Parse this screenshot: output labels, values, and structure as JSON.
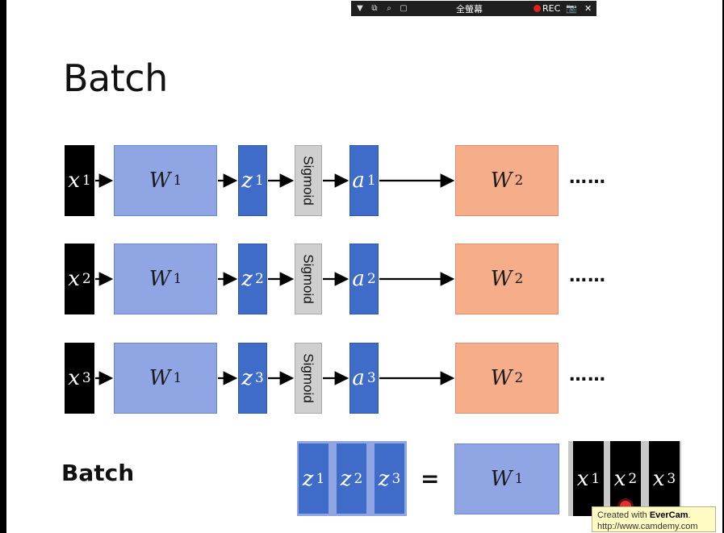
{
  "toolbar": {
    "title": "全螢幕",
    "rec_label": "REC",
    "icons": [
      "dropdown-icon",
      "restore-icon",
      "zoom-icon",
      "crop-icon",
      "camera-icon",
      "close-icon"
    ],
    "close_label": "✕"
  },
  "slide": {
    "title": "Batch",
    "rows": [
      {
        "x": "x",
        "x_sup": "1",
        "w": "W",
        "w_sup": "1",
        "z": "z",
        "z_sup": "1",
        "sigmoid": "Sigmoid",
        "a": "a",
        "a_sup": "1",
        "w2": "W",
        "w2_sup": "2",
        "dots": "……"
      },
      {
        "x": "x",
        "x_sup": "2",
        "w": "W",
        "w_sup": "1",
        "z": "z",
        "z_sup": "2",
        "sigmoid": "Sigmoid",
        "a": "a",
        "a_sup": "2",
        "w2": "W",
        "w2_sup": "2",
        "dots": "……"
      },
      {
        "x": "x",
        "x_sup": "3",
        "w": "W",
        "w_sup": "1",
        "z": "z",
        "z_sup": "3",
        "sigmoid": "Sigmoid",
        "a": "a",
        "a_sup": "3",
        "w2": "W",
        "w2_sup": "2",
        "dots": "……"
      }
    ],
    "batch_label": "Batch",
    "batch_z": [
      {
        "v": "z",
        "s": "1"
      },
      {
        "v": "z",
        "s": "2"
      },
      {
        "v": "z",
        "s": "3"
      }
    ],
    "equals": "=",
    "batch_w": {
      "v": "W",
      "s": "1"
    },
    "batch_x": [
      {
        "v": "x",
        "s": "1"
      },
      {
        "v": "x",
        "s": "2"
      },
      {
        "v": "x",
        "s": "3"
      }
    ]
  },
  "watermark": {
    "line1_prefix": "Created with ",
    "line1_brand": "EverCam",
    "line1_suffix": ".",
    "line2": "http://www.camdemy.com"
  },
  "colors": {
    "input_box": "#000000",
    "weight_box": "#8fa5e4",
    "z_box": "#3f6cc9",
    "sigmoid_box": "#cfcfcf",
    "w2_box": "#f6ad8a"
  }
}
